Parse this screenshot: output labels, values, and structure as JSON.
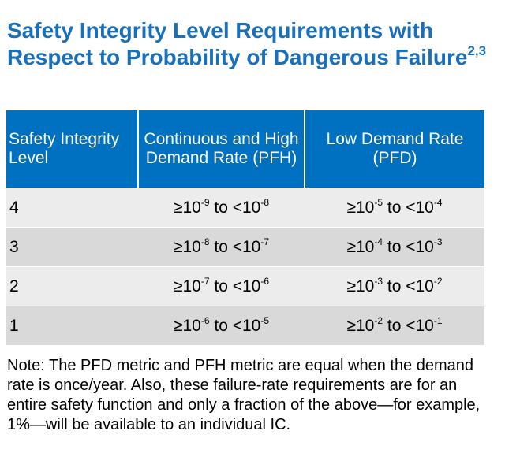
{
  "title": [
    {
      "text": "Safety Integrity Level Requirements with Respect to Probability of Dangerous Failure"
    },
    {
      "sup": "2,3"
    }
  ],
  "table": {
    "header": [
      "Safety Integrity Level",
      "Continuous and High Demand Rate (PFH)",
      "Low Demand Rate (PFD)"
    ],
    "rows": [
      [
        "4",
        [
          {
            "text": "≥10"
          },
          {
            "sup": "-9"
          },
          {
            "text": " to <10"
          },
          {
            "sup": "-8"
          }
        ],
        [
          {
            "text": "≥10"
          },
          {
            "sup": "-5"
          },
          {
            "text": " to <10"
          },
          {
            "sup": "-4"
          }
        ]
      ],
      [
        "3",
        [
          {
            "text": "≥10"
          },
          {
            "sup": "-8"
          },
          {
            "text": " to <10"
          },
          {
            "sup": "-7"
          }
        ],
        [
          {
            "text": "≥10"
          },
          {
            "sup": "-4"
          },
          {
            "text": " to <10"
          },
          {
            "sup": "-3"
          }
        ]
      ],
      [
        "2",
        [
          {
            "text": "≥10"
          },
          {
            "sup": "-7"
          },
          {
            "text": " to <10"
          },
          {
            "sup": "-6"
          }
        ],
        [
          {
            "text": "≥10"
          },
          {
            "sup": "-3"
          },
          {
            "text": " to <10"
          },
          {
            "sup": "-2"
          }
        ]
      ],
      [
        "1",
        [
          {
            "text": "≥10"
          },
          {
            "sup": "-6"
          },
          {
            "text": " to <10"
          },
          {
            "sup": "-5"
          }
        ],
        [
          {
            "text": "≥10"
          },
          {
            "sup": "-2"
          },
          {
            "text": " to <10"
          },
          {
            "sup": "-1"
          }
        ]
      ]
    ]
  },
  "note": "Note: The PFD metric and PFH metric are equal when the demand rate is once/year. Also, these failure-rate requirements are for an entire safety function and only a fraction of the above—for example, 1%—will be available to an individual IC."
}
